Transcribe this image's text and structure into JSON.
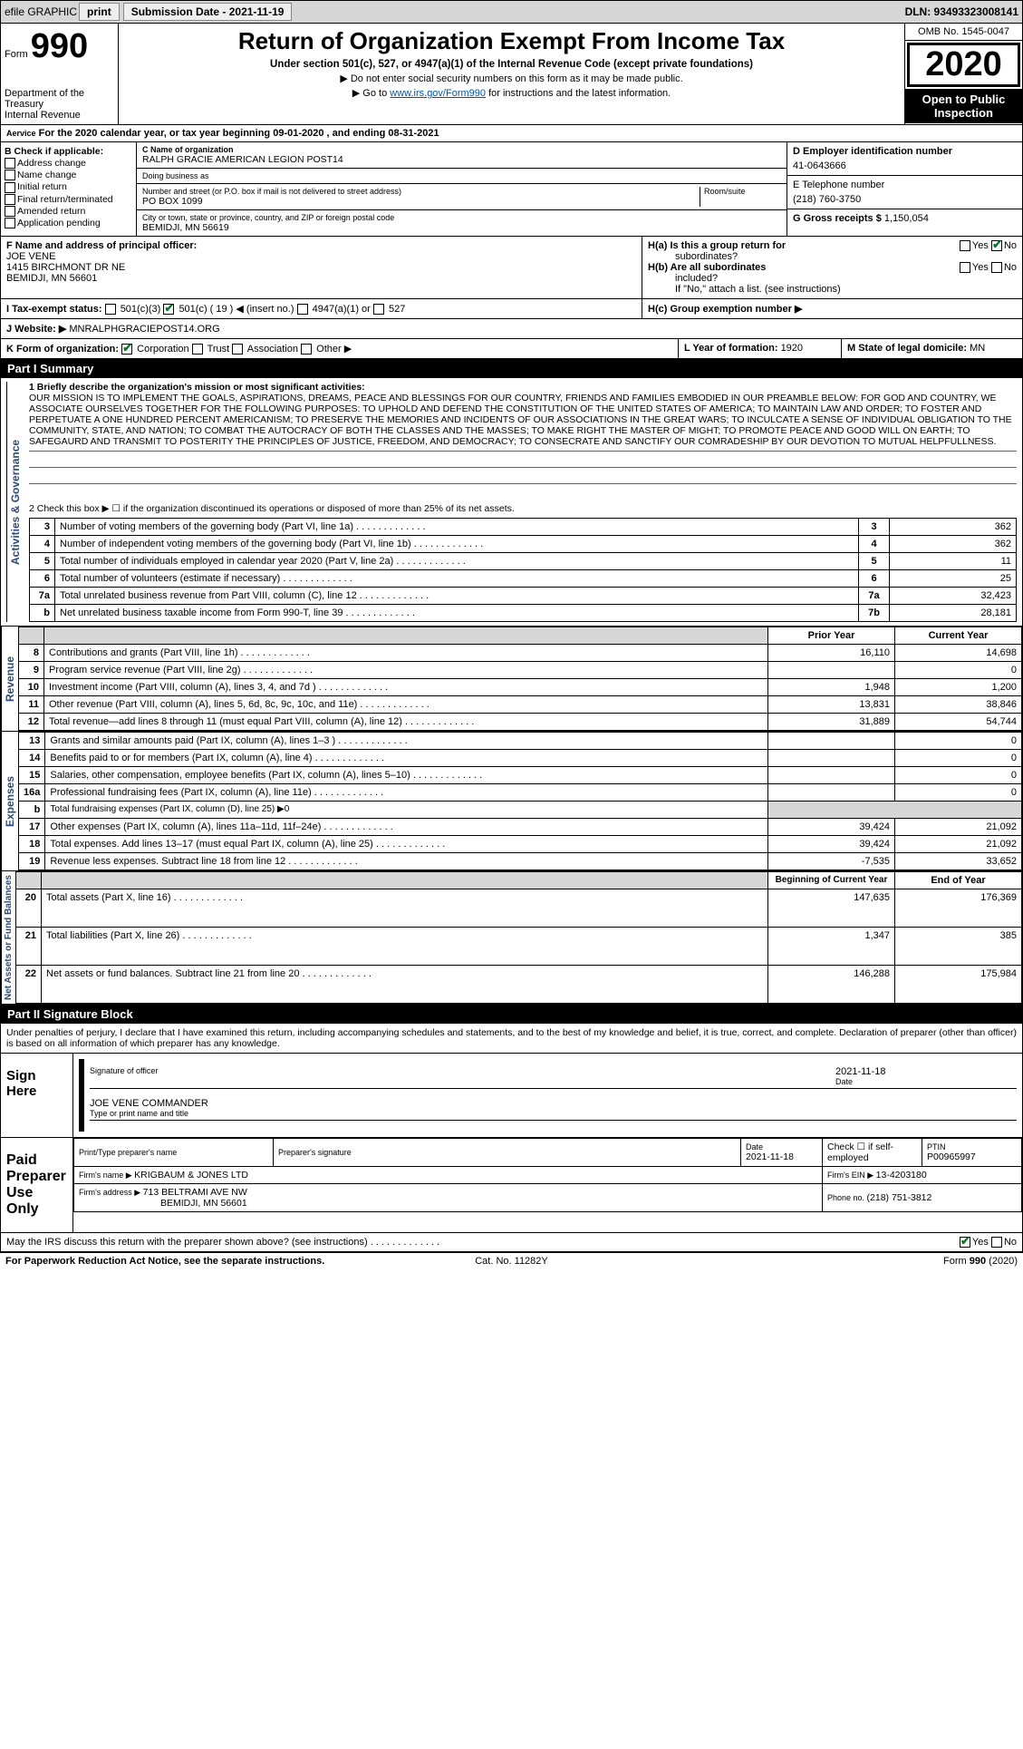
{
  "topbar": {
    "efile_label": "efile GRAPHIC",
    "print": "print",
    "submission_date_label": "Submission Date - 2021-11-19",
    "dln": "DLN: 93493323008141"
  },
  "header": {
    "form_prefix": "Form",
    "form_number": "990",
    "dept1": "Department of the",
    "dept2": "Treasury",
    "dept3": "Internal Revenue",
    "dept4": "Aervice",
    "title": "Return of Organization Exempt From Income Tax",
    "subtitle": "Under section 501(c), 527, or 4947(a)(1) of the Internal Revenue Code (except private foundations)",
    "instr1": "▶ Do not enter social security numbers on this form as it may be made public.",
    "instr2_pre": "▶ Go to ",
    "instr2_link": "www.irs.gov/Form990",
    "instr2_post": " for instructions and the latest information.",
    "omb": "OMB No. 1545-0047",
    "year": "2020",
    "open1": "Open to Public",
    "open2": "Inspection"
  },
  "period": {
    "text_a": "For the 2020 calendar year, or tax year beginning ",
    "begin": "09-01-2020",
    "text_b": " , and ending ",
    "end": "08-31-2021"
  },
  "sectionB": {
    "check_label": "B Check if applicable:",
    "opts": [
      "Address change",
      "Name change",
      "Initial return",
      "Final return/terminated",
      "Amended return",
      "Application pending"
    ],
    "c_name_label": "C Name of organization",
    "c_name": "RALPH GRACIE AMERICAN LEGION POST14",
    "dba_label": "Doing business as",
    "addr_label": "Number and street (or P.O. box if mail is not delivered to street address)",
    "addr": "PO BOX 1099",
    "room_label": "Room/suite",
    "city_label": "City or town, state or province, country, and ZIP or foreign postal code",
    "city": "BEMIDJI, MN  56619",
    "d_label": "D Employer identification number",
    "d_val": "41-0643666",
    "e_label": "E Telephone number",
    "e_val": "(218) 760-3750",
    "g_label": "G Gross receipts $ ",
    "g_val": "1,150,054"
  },
  "fgh": {
    "f_label": "F  Name and address of principal officer:",
    "f_name": "JOE VENE",
    "f_addr1": "1415 BIRCHMONT DR NE",
    "f_addr2": "BEMIDJI, MN  56601",
    "ha_label": "H(a)  Is this a group return for",
    "ha_label2": "subordinates?",
    "hb_label": "H(b)  Are all subordinates",
    "hb_label2": "included?",
    "hb_note": "If \"No,\" attach a list. (see instructions)",
    "hc_label": "H(c)  Group exemption number ▶",
    "yes": "Yes",
    "no": "No"
  },
  "status": {
    "i_label": "I     Tax-exempt status:",
    "opt1": "501(c)(3)",
    "opt2": "501(c) ( 19 ) ◀ (insert no.)",
    "opt3": "4947(a)(1) or",
    "opt4": "527",
    "j_label": "J    Website: ▶",
    "j_val": "  MNRALPHGRACIEPOST14.ORG"
  },
  "klm": {
    "k_label": "K Form of organization:",
    "k_opts": [
      "Corporation",
      "Trust",
      "Association",
      "Other ▶"
    ],
    "l_label": "L Year of formation: ",
    "l_val": "1920",
    "m_label": "M State of legal domicile: ",
    "m_val": "MN"
  },
  "part1": {
    "header": "Part I      Summary",
    "q1_label": "1   Briefly describe the organization's mission or most significant activities:",
    "mission": "OUR MISSION IS TO IMPLEMENT THE GOALS, ASPIRATIONS, DREAMS, PEACE AND BLESSINGS FOR OUR COUNTRY, FRIENDS AND FAMILIES EMBODIED IN OUR PREAMBLE BELOW: FOR GOD AND COUNTRY, WE ASSOCIATE OURSELVES TOGETHER FOR THE FOLLOWING PURPOSES: TO UPHOLD AND DEFEND THE CONSTITUTION OF THE UNITED STATES OF AMERICA; TO MAINTAIN LAW AND ORDER; TO FOSTER AND PERPETUATE A ONE HUNDRED PERCENT AMERICANISM; TO PRESERVE THE MEMORIES AND INCIDENTS OF OUR ASSOCIATIONS IN THE GREAT WARS; TO INCULCATE A SENSE OF INDIVIDUAL OBLIGATION TO THE COMMUNITY, STATE, AND NATION; TO COMBAT THE AUTOCRACY OF BOTH THE CLASSES AND THE MASSES; TO MAKE RIGHT THE MASTER OF MIGHT; TO PROMOTE PEACE AND GOOD WILL ON EARTH; TO SAFEGAURD AND TRANSMIT TO POSTERITY THE PRINCIPLES OF JUSTICE, FREEDOM, AND DEMOCRACY; TO CONSECRATE AND SANCTIFY OUR COMRADESHIP BY OUR DEVOTION TO MUTUAL HELPFULLNESS.",
    "q2": "2   Check this box ▶ ☐ if the organization discontinued its operations or disposed of more than 25% of its net assets.",
    "vert_gov": "Activities & Governance",
    "vert_rev": "Revenue",
    "vert_exp": "Expenses",
    "vert_net": "Net Assets or Fund Balances",
    "rows_gov": [
      {
        "n": "3",
        "t": "Number of voting members of the governing body (Part VI, line 1a)",
        "id": "3",
        "v": "362"
      },
      {
        "n": "4",
        "t": "Number of independent voting members of the governing body (Part VI, line 1b)",
        "id": "4",
        "v": "362"
      },
      {
        "n": "5",
        "t": "Total number of individuals employed in calendar year 2020 (Part V, line 2a)",
        "id": "5",
        "v": "11"
      },
      {
        "n": "6",
        "t": "Total number of volunteers (estimate if necessary)",
        "id": "6",
        "v": "25"
      },
      {
        "n": "7a",
        "t": "Total unrelated business revenue from Part VIII, column (C), line 12",
        "id": "7a",
        "v": "32,423"
      },
      {
        "n": "b",
        "t": "Net unrelated business taxable income from Form 990-T, line 39",
        "id": "7b",
        "v": "28,181"
      }
    ],
    "prior_label": "Prior Year",
    "current_label": "Current Year",
    "rows_rev": [
      {
        "n": "8",
        "t": "Contributions and grants (Part VIII, line 1h)",
        "p": "16,110",
        "c": "14,698"
      },
      {
        "n": "9",
        "t": "Program service revenue (Part VIII, line 2g)",
        "p": "",
        "c": "0"
      },
      {
        "n": "10",
        "t": "Investment income (Part VIII, column (A), lines 3, 4, and 7d )",
        "p": "1,948",
        "c": "1,200"
      },
      {
        "n": "11",
        "t": "Other revenue (Part VIII, column (A), lines 5, 6d, 8c, 9c, 10c, and 11e)",
        "p": "13,831",
        "c": "38,846"
      },
      {
        "n": "12",
        "t": "Total revenue—add lines 8 through 11 (must equal Part VIII, column (A), line 12)",
        "p": "31,889",
        "c": "54,744"
      }
    ],
    "rows_exp": [
      {
        "n": "13",
        "t": "Grants and similar amounts paid (Part IX, column (A), lines 1–3 )",
        "p": "",
        "c": "0"
      },
      {
        "n": "14",
        "t": "Benefits paid to or for members (Part IX, column (A), line 4)",
        "p": "",
        "c": "0"
      },
      {
        "n": "15",
        "t": "Salaries, other compensation, employee benefits (Part IX, column (A), lines 5–10)",
        "p": "",
        "c": "0"
      },
      {
        "n": "16a",
        "t": "Professional fundraising fees (Part IX, column (A), line 11e)",
        "p": "",
        "c": "0"
      },
      {
        "n": "b",
        "t": "Total fundraising expenses (Part IX, column (D), line 25) ▶0",
        "p": "—",
        "c": "—"
      },
      {
        "n": "17",
        "t": "Other expenses (Part IX, column (A), lines 11a–11d, 11f–24e)",
        "p": "39,424",
        "c": "21,092"
      },
      {
        "n": "18",
        "t": "Total expenses. Add lines 13–17 (must equal Part IX, column (A), line 25)",
        "p": "39,424",
        "c": "21,092"
      },
      {
        "n": "19",
        "t": "Revenue less expenses. Subtract line 18 from line 12",
        "p": "-7,535",
        "c": "33,652"
      }
    ],
    "boy_label": "Beginning of Current Year",
    "eoy_label": "End of Year",
    "rows_net": [
      {
        "n": "20",
        "t": "Total assets (Part X, line 16)",
        "p": "147,635",
        "c": "176,369"
      },
      {
        "n": "21",
        "t": "Total liabilities (Part X, line 26)",
        "p": "1,347",
        "c": "385"
      },
      {
        "n": "22",
        "t": "Net assets or fund balances. Subtract line 21 from line 20",
        "p": "146,288",
        "c": "175,984"
      }
    ]
  },
  "part2": {
    "header": "Part II     Signature Block",
    "perjury": "Under penalties of perjury, I declare that I have examined this return, including accompanying schedules and statements, and to the best of my knowledge and belief, it is true, correct, and complete. Declaration of preparer (other than officer) is based on all information of which preparer has any knowledge.",
    "sign_here": "Sign Here",
    "sig_officer": "Signature of officer",
    "date": "Date",
    "sig_date": "2021-11-18",
    "typed": "JOE VENE COMMANDER",
    "typed_label": "Type or print name and title",
    "paid": "Paid Preparer Use Only",
    "pt_name_label": "Print/Type preparer's name",
    "pt_sig_label": "Preparer's signature",
    "pt_date_label": "Date",
    "pt_date": "2021-11-18",
    "pt_check": "Check ☐ if self-employed",
    "ptin_label": "PTIN",
    "ptin": "P00965997",
    "firm_name_label": "Firm's name      ▶ ",
    "firm_name": "KRIGBAUM & JONES LTD",
    "firm_ein_label": "Firm's EIN ▶ ",
    "firm_ein": "13-4203180",
    "firm_addr_label": "Firm's address ▶ ",
    "firm_addr": "713 BELTRAMI AVE NW",
    "firm_city": "BEMIDJI, MN  56601",
    "firm_phone_label": "Phone no. ",
    "firm_phone": "(218) 751-3812",
    "discuss": "May the IRS discuss this return with the preparer shown above? (see instructions)",
    "yes": "Yes",
    "no": "No"
  },
  "footer": {
    "paperwork": "For Paperwork Reduction Act Notice, see the separate instructions.",
    "cat": "Cat. No. 11282Y",
    "form": "Form 990 (2020)"
  },
  "colors": {
    "header_gray": "#d6d6d6",
    "link_blue": "#0055aa",
    "check_green": "#0a7a2a",
    "vert_blue": "#2a4a7a"
  }
}
